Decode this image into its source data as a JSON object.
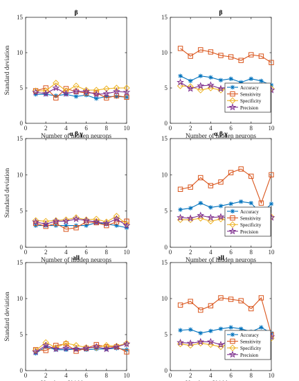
{
  "figure": {
    "ylabel": "Standard deviation",
    "xlabel": "Number of hidden neurons"
  },
  "legend_labels": [
    "Accuracy",
    "Sensitivity",
    "Specificity",
    "Precision"
  ],
  "chart_data": [
    {
      "type": "line",
      "title": "β",
      "xlabel": "Number of hidden neurons",
      "ylabel": "Standard deviation",
      "x": [
        1,
        2,
        3,
        4,
        5,
        6,
        7,
        8,
        9,
        10
      ],
      "xlim": [
        0,
        10
      ],
      "ylim": [
        0,
        15
      ],
      "xticks": [
        0,
        2,
        4,
        6,
        8,
        10
      ],
      "yticks": [
        0,
        5,
        10,
        15
      ],
      "legend": "none",
      "series": [
        {
          "name": "Accuracy",
          "color": "#0072BD",
          "marker": "asterisk",
          "values": [
            4.1,
            4.1,
            3.9,
            4.1,
            3.8,
            4.0,
            3.5,
            3.8,
            3.8,
            3.7
          ]
        },
        {
          "name": "Sensitivity",
          "color": "#D95319",
          "marker": "square",
          "values": [
            4.6,
            5.0,
            3.6,
            4.9,
            4.5,
            4.3,
            4.3,
            3.6,
            3.9,
            3.7
          ]
        },
        {
          "name": "Specificity",
          "color": "#EDB120",
          "marker": "diamond",
          "values": [
            4.6,
            4.6,
            5.7,
            4.6,
            5.3,
            4.7,
            4.7,
            4.9,
            5.0,
            5.0
          ]
        },
        {
          "name": "Precision",
          "color": "#7E2F8E",
          "marker": "star",
          "values": [
            4.4,
            4.2,
            5.0,
            4.2,
            4.5,
            4.5,
            4.1,
            4.2,
            4.5,
            4.4
          ]
        }
      ]
    },
    {
      "type": "line",
      "title": "β",
      "xlabel": "Number of hidden neurons",
      "ylabel": "",
      "x": [
        1,
        2,
        3,
        4,
        5,
        6,
        7,
        8,
        9,
        10
      ],
      "xlim": [
        0,
        10
      ],
      "ylim": [
        0,
        15
      ],
      "xticks": [
        0,
        2,
        4,
        6,
        8,
        10
      ],
      "yticks": [
        0,
        5,
        10,
        15
      ],
      "legend": "bottom-right",
      "series": [
        {
          "name": "Accuracy",
          "color": "#0072BD",
          "marker": "asterisk",
          "values": [
            6.7,
            6.0,
            6.7,
            6.5,
            6.1,
            6.3,
            5.8,
            6.3,
            6.0,
            5.4
          ]
        },
        {
          "name": "Sensitivity",
          "color": "#D95319",
          "marker": "square",
          "values": [
            10.6,
            9.5,
            10.4,
            10.1,
            9.6,
            9.4,
            8.9,
            9.7,
            9.5,
            8.6
          ]
        },
        {
          "name": "Specificity",
          "color": "#EDB120",
          "marker": "diamond",
          "values": [
            5.3,
            5.2,
            4.7,
            5.0,
            4.7,
            5.1,
            5.0,
            4.9,
            4.4,
            4.9
          ]
        },
        {
          "name": "Precision",
          "color": "#7E2F8E",
          "marker": "star",
          "values": [
            5.8,
            4.9,
            5.3,
            5.4,
            4.9,
            5.2,
            5.2,
            5.0,
            4.2,
            4.7
          ]
        }
      ]
    },
    {
      "type": "line",
      "title": "α β γ",
      "xlabel": "Number of hidden neurons",
      "ylabel": "Standard deviation",
      "x": [
        1,
        2,
        3,
        4,
        5,
        6,
        7,
        8,
        9,
        10
      ],
      "xlim": [
        0,
        10
      ],
      "ylim": [
        0,
        15
      ],
      "xticks": [
        0,
        2,
        4,
        6,
        8,
        10
      ],
      "yticks": [
        0,
        5,
        10,
        15
      ],
      "legend": "none",
      "series": [
        {
          "name": "Accuracy",
          "color": "#0072BD",
          "marker": "asterisk",
          "values": [
            3.0,
            3.0,
            3.0,
            3.0,
            3.0,
            3.0,
            3.4,
            3.2,
            3.0,
            2.7
          ]
        },
        {
          "name": "Sensitivity",
          "color": "#D95319",
          "marker": "square",
          "values": [
            3.3,
            2.9,
            3.3,
            2.5,
            2.7,
            3.5,
            3.4,
            3.0,
            3.5,
            3.6
          ]
        },
        {
          "name": "Specificity",
          "color": "#EDB120",
          "marker": "diamond",
          "values": [
            3.7,
            3.6,
            3.7,
            3.8,
            4.1,
            3.8,
            3.9,
            3.5,
            4.3,
            3.2
          ]
        },
        {
          "name": "Precision",
          "color": "#7E2F8E",
          "marker": "star",
          "values": [
            3.5,
            3.2,
            3.6,
            3.6,
            3.9,
            3.7,
            3.5,
            3.3,
            3.9,
            3.0
          ]
        }
      ]
    },
    {
      "type": "line",
      "title": "α β γ",
      "xlabel": "Number of hidden neurons",
      "ylabel": "",
      "x": [
        1,
        2,
        3,
        4,
        5,
        6,
        7,
        8,
        9,
        10
      ],
      "xlim": [
        0,
        10
      ],
      "ylim": [
        0,
        15
      ],
      "xticks": [
        0,
        2,
        4,
        6,
        8,
        10
      ],
      "yticks": [
        0,
        5,
        10,
        15
      ],
      "legend": "bottom-right",
      "series": [
        {
          "name": "Accuracy",
          "color": "#0072BD",
          "marker": "asterisk",
          "values": [
            5.2,
            5.4,
            6.1,
            5.5,
            5.7,
            6.0,
            6.3,
            6.1,
            4.6,
            6.0
          ]
        },
        {
          "name": "Sensitivity",
          "color": "#D95319",
          "marker": "square",
          "values": [
            8.0,
            8.3,
            9.6,
            8.5,
            9.0,
            10.3,
            10.8,
            9.8,
            6.1,
            10.0
          ]
        },
        {
          "name": "Specificity",
          "color": "#EDB120",
          "marker": "diamond",
          "values": [
            3.8,
            3.8,
            4.0,
            3.6,
            3.9,
            3.6,
            3.7,
            4.3,
            4.7,
            4.2
          ]
        },
        {
          "name": "Precision",
          "color": "#7E2F8E",
          "marker": "star",
          "values": [
            4.1,
            4.0,
            4.4,
            4.1,
            4.2,
            4.0,
            4.0,
            4.5,
            4.6,
            4.1
          ]
        }
      ]
    },
    {
      "type": "line",
      "title": "all",
      "xlabel": "Number of hidden neurons",
      "ylabel": "Standard deviation",
      "x": [
        1,
        2,
        3,
        4,
        5,
        6,
        7,
        8,
        9,
        10
      ],
      "xlim": [
        0,
        10
      ],
      "ylim": [
        0,
        15
      ],
      "xticks": [
        0,
        2,
        4,
        6,
        8,
        10
      ],
      "yticks": [
        0,
        5,
        10,
        15
      ],
      "legend": "none",
      "series": [
        {
          "name": "Accuracy",
          "color": "#0072BD",
          "marker": "asterisk",
          "values": [
            2.4,
            3.3,
            2.9,
            2.9,
            3.0,
            2.9,
            3.0,
            3.0,
            3.1,
            2.9
          ]
        },
        {
          "name": "Sensitivity",
          "color": "#D95319",
          "marker": "square",
          "values": [
            2.9,
            2.8,
            3.5,
            3.7,
            2.7,
            3.1,
            3.6,
            3.3,
            3.3,
            2.6
          ]
        },
        {
          "name": "Specificity",
          "color": "#EDB120",
          "marker": "diamond",
          "values": [
            2.8,
            3.9,
            3.2,
            3.8,
            3.5,
            3.2,
            3.2,
            3.5,
            3.4,
            3.8
          ]
        },
        {
          "name": "Precision",
          "color": "#7E2F8E",
          "marker": "star",
          "values": [
            2.6,
            3.5,
            3.0,
            3.1,
            3.0,
            3.1,
            3.3,
            3.0,
            3.3,
            3.7
          ]
        }
      ]
    },
    {
      "type": "line",
      "title": "all",
      "xlabel": "Number of hidden neurons",
      "ylabel": "",
      "x": [
        1,
        2,
        3,
        4,
        5,
        6,
        7,
        8,
        9,
        10
      ],
      "xlim": [
        0,
        10
      ],
      "ylim": [
        0,
        15
      ],
      "xticks": [
        0,
        2,
        4,
        6,
        8,
        10
      ],
      "yticks": [
        0,
        5,
        10,
        15
      ],
      "legend": "bottom-right",
      "series": [
        {
          "name": "Accuracy",
          "color": "#0072BD",
          "marker": "asterisk",
          "values": [
            5.6,
            5.7,
            5.2,
            5.5,
            5.8,
            6.0,
            5.8,
            5.4,
            6.0,
            5.2
          ]
        },
        {
          "name": "Sensitivity",
          "color": "#D95319",
          "marker": "square",
          "values": [
            9.1,
            9.6,
            8.4,
            9.0,
            10.1,
            9.9,
            9.7,
            8.6,
            10.1,
            5.0
          ]
        },
        {
          "name": "Specificity",
          "color": "#EDB120",
          "marker": "diamond",
          "values": [
            3.7,
            3.5,
            3.8,
            3.6,
            3.3,
            3.9,
            3.8,
            4.0,
            3.7,
            4.5
          ]
        },
        {
          "name": "Precision",
          "color": "#7E2F8E",
          "marker": "star",
          "values": [
            3.9,
            3.8,
            4.0,
            4.0,
            3.6,
            4.2,
            4.2,
            4.2,
            3.9,
            4.7
          ]
        }
      ]
    }
  ]
}
